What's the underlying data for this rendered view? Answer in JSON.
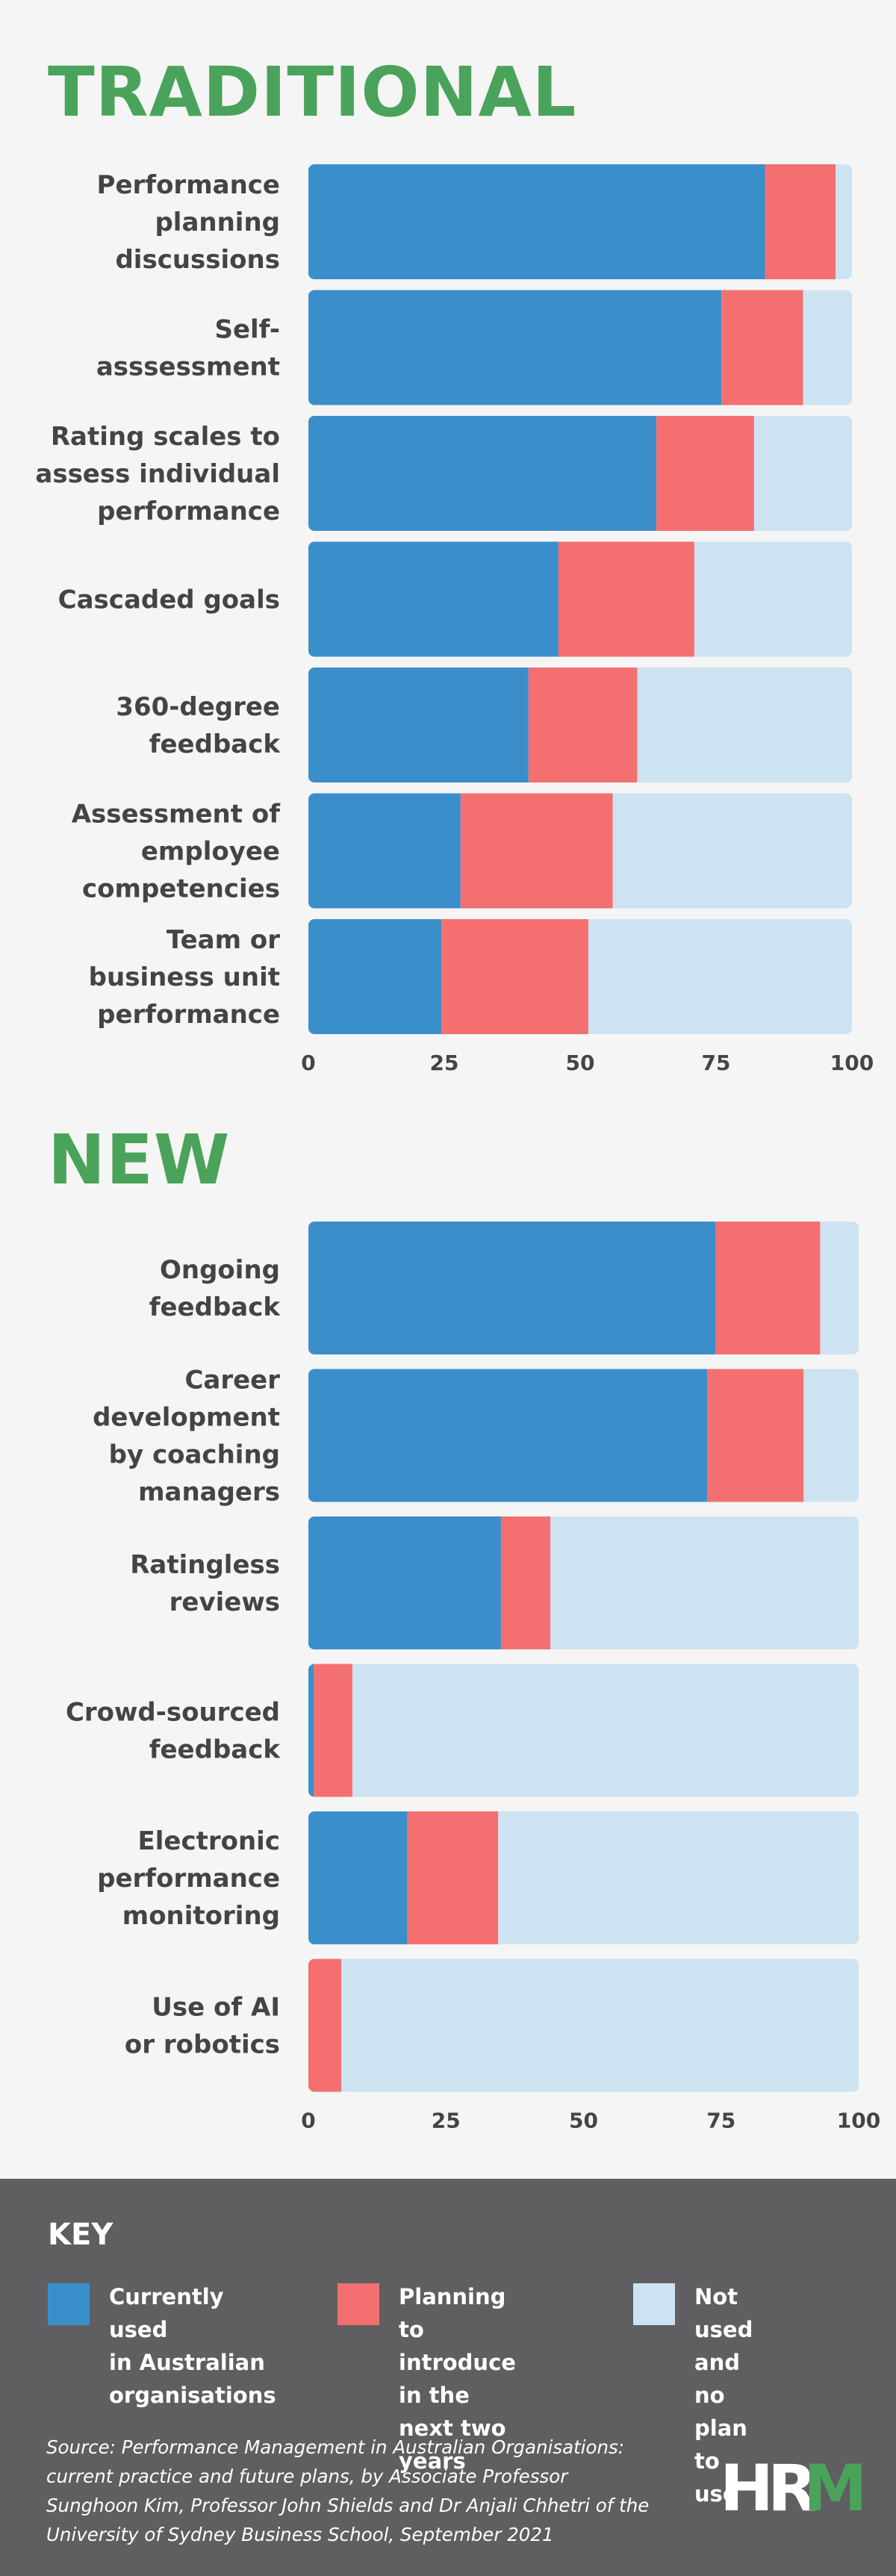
{
  "sections": {
    "traditional_title": "TRADITIONAL",
    "new_title": "NEW"
  },
  "colors": {
    "current": "#3a8fcb",
    "planning": "#f46f6f",
    "not_used": "#cde3f1",
    "title_green": "#4aa35a",
    "key_bg": "#5f5f62"
  },
  "chart_data": [
    {
      "type": "bar",
      "orientation": "horizontal",
      "stacked": true,
      "title": "TRADITIONAL",
      "categories": [
        "Performance\nplanning\ndiscussions",
        "Self-\nasssessment",
        "Rating scales to\nassess individual\nperformance",
        "Cascaded goals",
        "360-degree\nfeedback",
        "Assessment of\nemployee\ncompetencies",
        "Team or\nbusiness unit\nperformance"
      ],
      "series": [
        {
          "name": "Currently used in Australian organisations",
          "values": [
            84,
            76,
            64,
            46,
            40.5,
            28,
            24.5
          ]
        },
        {
          "name": "Planning to introduce in the next two years",
          "values": [
            13,
            15,
            18,
            25,
            20,
            28,
            27
          ]
        },
        {
          "name": "Not used and no plan to use",
          "values": [
            3,
            9,
            18,
            29,
            39.5,
            44,
            48.5
          ]
        }
      ],
      "xticks": [
        "0",
        "25",
        "50",
        "75",
        "100"
      ],
      "xlim": [
        0,
        100
      ]
    },
    {
      "type": "bar",
      "orientation": "horizontal",
      "stacked": true,
      "title": "NEW",
      "categories": [
        "Ongoing\nfeedback",
        "Career\ndevelopment\nby coaching\nmanagers",
        "Ratingless\nreviews",
        "Crowd-sourced\nfeedback",
        "Electronic\nperformance\nmonitoring",
        "Use of AI\nor robotics"
      ],
      "series": [
        {
          "name": "Currently used in Australian organisations",
          "values": [
            74,
            72.5,
            35,
            1,
            18,
            0
          ]
        },
        {
          "name": "Planning to introduce in the next two years",
          "values": [
            19,
            17.5,
            9,
            7,
            16.5,
            6
          ]
        },
        {
          "name": "Not used and no plan to use",
          "values": [
            7,
            10,
            56,
            92,
            65.5,
            94
          ]
        }
      ],
      "xticks": [
        "0",
        "25",
        "50",
        "75",
        "100"
      ],
      "xlim": [
        0,
        100
      ]
    }
  ],
  "key": {
    "title": "KEY",
    "items": [
      {
        "label": "Currently used\nin Australian\norganisations",
        "color": "#3a8fcb"
      },
      {
        "label": "Planning to\nintroduce in the\nnext two years",
        "color": "#f46f6f"
      },
      {
        "label": "Not used and\nno plan to use",
        "color": "#cde3f1"
      }
    ]
  },
  "source": "Source: Performance Management in Australian Organisations: current practice and future plans, by Associate Professor Sunghoon Kim, Professor John Shields and Dr Anjali Chhetri of the University of Sydney Business School, September 2021",
  "logo": {
    "text_dark": "HR",
    "text_green": "M"
  }
}
